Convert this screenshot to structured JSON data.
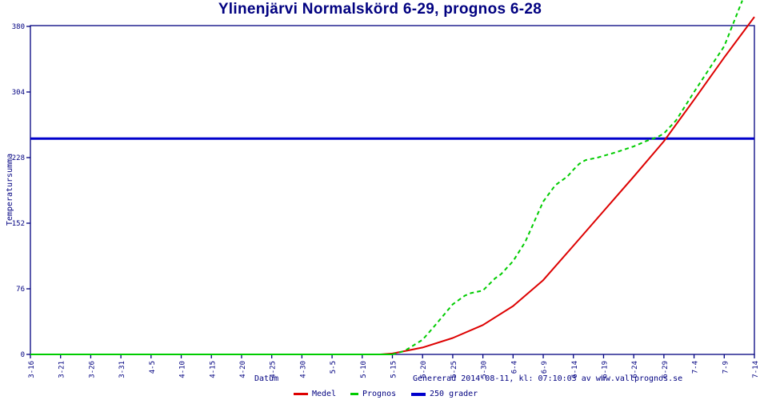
{
  "title": "Ylinenjärvi Normalskörd 6-29, prognos 6-28",
  "colors": {
    "background": "#ffffff",
    "axis": "#000080",
    "text": "#000080",
    "medel": "#dd0000",
    "prognos": "#00cc00",
    "grader": "#0000cc"
  },
  "axes": {
    "x_label": "Datum",
    "y_label": "Temperatursumma",
    "y_ticks": [
      0,
      76,
      152,
      228,
      304,
      380
    ],
    "ylim": [
      0,
      380
    ]
  },
  "footer": {
    "generated": "Genererad 2014-08-11, kl: 07:10:03 av www.vallprognos.se"
  },
  "legend": [
    {
      "label": "Medel",
      "color": "#dd0000"
    },
    {
      "label": "Prognos",
      "color": "#00cc00"
    },
    {
      "label": "250 grader",
      "color": "#0000cc"
    }
  ],
  "chart_data": {
    "type": "line",
    "title": "Ylinenjärvi Normalskörd 6-29, prognos 6-28",
    "xlabel": "Datum",
    "ylabel": "Temperatursumma",
    "ylim": [
      0,
      380
    ],
    "grid": false,
    "legend_position": "bottom",
    "x_tick_labels": [
      "3-16",
      "3-21",
      "3-26",
      "3-31",
      "4-5",
      "4-10",
      "4-15",
      "4-20",
      "4-25",
      "4-30",
      "5-5",
      "5-10",
      "5-15",
      "5-20",
      "5-25",
      "5-30",
      "6-4",
      "6-9",
      "6-14",
      "6-19",
      "6-24",
      "6-29",
      "7-4",
      "7-9",
      "7-14"
    ],
    "series": [
      {
        "name": "250 grader",
        "color": "#0000cc",
        "width": 3,
        "segments": [
          {
            "style": "solid",
            "points": [
              [
                "3-16",
                250
              ],
              [
                "7-14",
                250
              ]
            ]
          }
        ]
      },
      {
        "name": "Medel",
        "color": "#dd0000",
        "width": 2,
        "segments": [
          {
            "style": "solid",
            "points": [
              [
                "3-16",
                0
              ],
              [
                "4-15",
                0
              ],
              [
                "5-10",
                0
              ],
              [
                "5-13",
                0
              ],
              [
                "5-15",
                1
              ],
              [
                "5-20",
                8
              ],
              [
                "5-25",
                19
              ],
              [
                "5-30",
                34
              ],
              [
                "6-4",
                56
              ],
              [
                "6-9",
                86
              ],
              [
                "6-14",
                126
              ],
              [
                "6-19",
                166
              ],
              [
                "6-24",
                206
              ],
              [
                "6-29",
                247
              ],
              [
                "7-4",
                295
              ],
              [
                "7-9",
                344
              ],
              [
                "7-14",
                391
              ]
            ]
          }
        ]
      },
      {
        "name": "Prognos",
        "color": "#00cc00",
        "width": 2,
        "segments": [
          {
            "style": "solid",
            "points": [
              [
                "3-16",
                0
              ],
              [
                "4-15",
                0
              ],
              [
                "5-15",
                0
              ]
            ]
          },
          {
            "style": "dashed",
            "points": [
              [
                "5-15",
                0
              ],
              [
                "5-17",
                4
              ],
              [
                "5-20",
                17
              ],
              [
                "5-22",
                33
              ],
              [
                "5-25",
                58
              ],
              [
                "5-27",
                68
              ],
              [
                "5-28",
                71
              ],
              [
                "5-30",
                74
              ],
              [
                "6-1",
                88
              ],
              [
                "6-2",
                93
              ],
              [
                "6-4",
                108
              ],
              [
                "6-6",
                130
              ],
              [
                "6-9",
                177
              ],
              [
                "6-11",
                196
              ],
              [
                "6-13",
                206
              ],
              [
                "6-14",
                214
              ],
              [
                "6-15",
                221
              ],
              [
                "6-16",
                225
              ],
              [
                "6-18",
                228
              ],
              [
                "6-19",
                230
              ],
              [
                "6-21",
                234
              ],
              [
                "6-24",
                241
              ],
              [
                "6-26",
                247
              ],
              [
                "6-28",
                252
              ],
              [
                "6-29",
                256
              ],
              [
                "7-1",
                271
              ],
              [
                "7-4",
                304
              ],
              [
                "7-7",
                336
              ],
              [
                "7-9",
                357
              ],
              [
                "7-12",
                410
              ]
            ]
          }
        ]
      }
    ]
  }
}
